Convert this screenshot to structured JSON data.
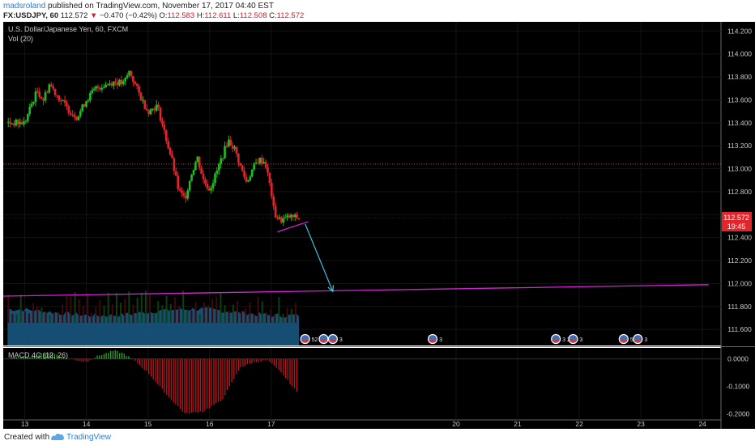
{
  "header": {
    "author": "madsroland",
    "published_text": "published on TradingView.com, November 17, 2017 04:40 EST",
    "symbol": "FX:USDJPY, 60",
    "last": "112.572",
    "change": "−0.470 (−0.42%)",
    "open_label": "O:",
    "open": "112.583",
    "high_label": "H:",
    "high": "112.611",
    "low_label": "L:",
    "low": "112.508",
    "close_label": "C:",
    "close": "112.572"
  },
  "legend": {
    "instrument": "U.S. Dollar/Japanese Yen, 60, FXCM",
    "volume": "Vol (20)",
    "macd": "MACD 4C (12, 26)"
  },
  "price_badge": {
    "price": "112.572",
    "countdown": "19:45"
  },
  "footer": {
    "created_with": "Created with",
    "brand": "TradingView"
  },
  "events": [
    {
      "day": 17.55,
      "label": "52 2"
    },
    {
      "day": 17.85,
      "label": "3"
    },
    {
      "day": 18.0,
      "label": "3"
    },
    {
      "day": 19.62,
      "label": "3"
    },
    {
      "day": 21.62,
      "label": "3 2"
    },
    {
      "day": 21.9,
      "label": "3"
    },
    {
      "day": 22.72,
      "label": "5 18"
    },
    {
      "day": 22.95,
      "label": "3"
    }
  ],
  "colors": {
    "up": "#1fbd1f",
    "down": "#e3242b",
    "background": "#000000",
    "macd_up": "#2ca02c",
    "macd_down": "#c0141b",
    "volume_area": "#1a5a86",
    "trendline": "#d424d4",
    "arrow": "#3ec3e4",
    "hline": "#b35a1e",
    "badge": "#e3242b"
  },
  "chart_data": {
    "type": "candlestick",
    "title": "U.S. Dollar/Japanese Yen, 60, FXCM",
    "x_axis": {
      "ticks": [
        "13",
        "14",
        "15",
        "16",
        "17",
        "20",
        "21",
        "22",
        "23",
        "24"
      ],
      "tick_days": [
        13,
        14,
        15,
        16,
        17,
        20,
        21,
        22,
        23,
        24
      ],
      "range": [
        12.65,
        24.3
      ]
    },
    "y_axis": {
      "ticks": [
        "114.200",
        "114.000",
        "113.800",
        "113.600",
        "113.400",
        "113.200",
        "113.000",
        "112.800",
        "112.600",
        "112.400",
        "112.200",
        "112.000",
        "111.800",
        "111.600"
      ],
      "range": [
        111.46,
        114.28
      ]
    },
    "macd_axis": {
      "ticks": [
        "0.0000",
        "-0.1000",
        "-0.2000"
      ],
      "range": [
        -0.222,
        0.04
      ]
    },
    "price_path": [
      [
        13.0,
        113.4
      ],
      [
        13.1,
        113.55
      ],
      [
        13.2,
        113.68
      ],
      [
        13.3,
        113.6
      ],
      [
        13.4,
        113.74
      ],
      [
        13.55,
        113.62
      ],
      [
        13.7,
        113.52
      ],
      [
        13.85,
        113.45
      ],
      [
        14.0,
        113.6
      ],
      [
        14.15,
        113.7
      ],
      [
        14.3,
        113.73
      ],
      [
        14.45,
        113.76
      ],
      [
        14.6,
        113.74
      ],
      [
        14.7,
        113.85
      ],
      [
        14.8,
        113.72
      ],
      [
        14.9,
        113.6
      ],
      [
        15.0,
        113.5
      ],
      [
        15.15,
        113.55
      ],
      [
        15.3,
        113.25
      ],
      [
        15.4,
        113.05
      ],
      [
        15.5,
        112.8
      ],
      [
        15.6,
        112.74
      ],
      [
        15.7,
        112.95
      ],
      [
        15.8,
        113.1
      ],
      [
        15.9,
        112.9
      ],
      [
        16.0,
        112.82
      ],
      [
        16.1,
        112.95
      ],
      [
        16.2,
        113.1
      ],
      [
        16.3,
        113.25
      ],
      [
        16.4,
        113.18
      ],
      [
        16.5,
        113.02
      ],
      [
        16.6,
        112.88
      ],
      [
        16.7,
        113.0
      ],
      [
        16.8,
        113.08
      ],
      [
        16.9,
        113.06
      ],
      [
        17.0,
        112.8
      ],
      [
        17.05,
        112.6
      ],
      [
        17.15,
        112.55
      ],
      [
        17.3,
        112.58
      ],
      [
        17.45,
        112.572
      ]
    ],
    "horizontal_level": 113.04,
    "trendline": {
      "from": [
        12.65,
        111.89
      ],
      "to": [
        24.1,
        111.99
      ]
    },
    "wedge_line": {
      "from": [
        17.1,
        112.45
      ],
      "to": [
        17.6,
        112.54
      ]
    },
    "arrow": {
      "from": [
        17.55,
        112.52
      ],
      "to": [
        18.0,
        111.93
      ]
    },
    "macd_path": [
      [
        12.7,
        0.0
      ],
      [
        13.1,
        0.01
      ],
      [
        13.4,
        0.025
      ],
      [
        13.7,
        0.0
      ],
      [
        14.0,
        -0.01
      ],
      [
        14.2,
        0.012
      ],
      [
        14.45,
        0.03
      ],
      [
        14.6,
        0.02
      ],
      [
        14.8,
        -0.01
      ],
      [
        15.0,
        -0.05
      ],
      [
        15.3,
        -0.13
      ],
      [
        15.6,
        -0.2
      ],
      [
        15.9,
        -0.19
      ],
      [
        16.2,
        -0.15
      ],
      [
        16.5,
        -0.03
      ],
      [
        16.75,
        -0.01
      ],
      [
        16.95,
        -0.005
      ],
      [
        17.2,
        -0.06
      ],
      [
        17.45,
        -0.13
      ]
    ]
  }
}
